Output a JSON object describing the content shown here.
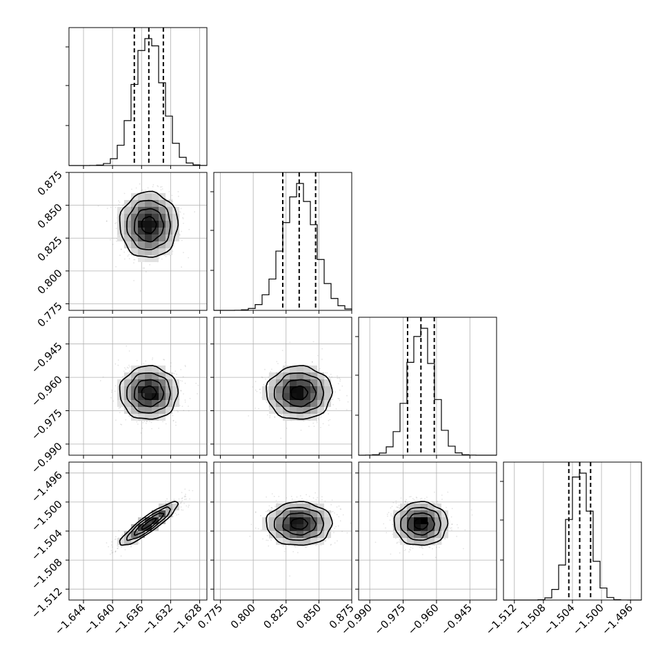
{
  "chart_data": {
    "type": "corner",
    "parameters": [
      {
        "center": -1.635,
        "sigma": 0.002,
        "range": [
          -1.646,
          -1.627
        ],
        "ticks": [
          -1.644,
          -1.64,
          -1.636,
          -1.632,
          -1.628
        ],
        "tick_labels": [
          "−1.644",
          "−1.640",
          "−1.636",
          "−1.632",
          "−1.628"
        ],
        "quantiles": [
          -1.637,
          -1.635,
          -1.633
        ]
      },
      {
        "center": 0.835,
        "sigma": 0.0125,
        "range": [
          0.77,
          0.875
        ],
        "ticks": [
          0.775,
          0.8,
          0.825,
          0.85,
          0.875
        ],
        "tick_labels": [
          "0.775",
          "0.800",
          "0.825",
          "0.850",
          "0.875"
        ],
        "quantiles": [
          0.8225,
          0.835,
          0.8475
        ]
      },
      {
        "center": -0.967,
        "sigma": 0.006,
        "range": [
          -0.995,
          -0.933
        ],
        "ticks": [
          -0.99,
          -0.975,
          -0.96,
          -0.945
        ],
        "tick_labels": [
          "−0.990",
          "−0.975",
          "−0.960",
          "−0.945"
        ],
        "quantiles": [
          -0.973,
          -0.967,
          -0.961
        ]
      },
      {
        "center": -1.503,
        "sigma": 0.0015,
        "range": [
          -1.5135,
          -1.4945
        ],
        "ticks": [
          -1.512,
          -1.508,
          -1.504,
          -1.5,
          -1.496
        ],
        "tick_labels": [
          "−1.512",
          "−1.508",
          "−1.504",
          "−1.500",
          "−1.496"
        ],
        "quantiles": [
          -1.5045,
          -1.503,
          -1.5015
        ]
      }
    ],
    "correlations": {
      "0-3": 0.9
    },
    "grid": true,
    "histogram_bins": 20
  }
}
